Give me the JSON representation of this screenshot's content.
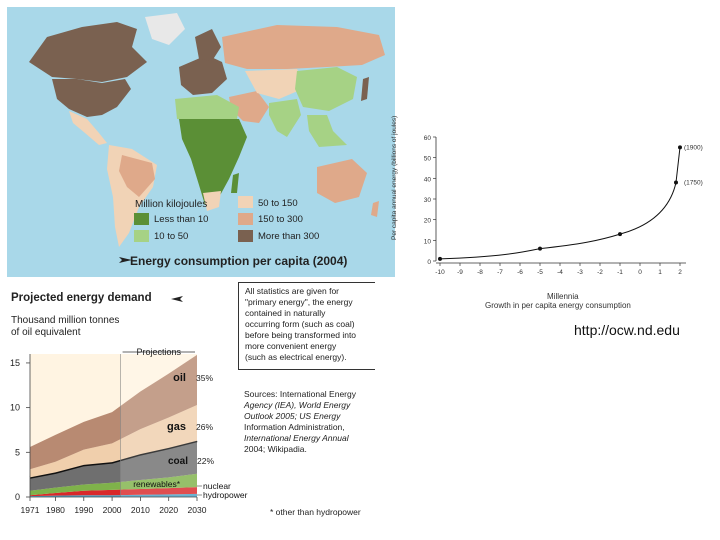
{
  "map": {
    "legend_title": "Million kilojoules",
    "legend_items": [
      {
        "label": "Less than 10",
        "color": "#5b8f36"
      },
      {
        "label": "10 to 50",
        "color": "#a6d285"
      },
      {
        "label": "50 to 150",
        "color": "#f1d3b6"
      },
      {
        "label": "150 to 300",
        "color": "#dfa98a"
      },
      {
        "label": "More than 300",
        "color": "#7a6150"
      }
    ],
    "caption": "Energy consumption per capita (2004)"
  },
  "projected": {
    "title": "Projected energy demand",
    "subtitle_line1": "Thousand million tonnes",
    "subtitle_line2": "of oil equivalent",
    "projections_label": "Projections",
    "note_lines": [
      "All statistics are given for",
      "\"primary energy\", the energy",
      "contained in naturally",
      "occurring form (such as coal)",
      "before being transformed into",
      "more convenient energy",
      "(such as electrical energy)."
    ],
    "sources_lines": [
      "Sources: International Energy",
      "Agency (IEA), World Energy",
      "Outlook 2005; US Energy",
      "Information Administration,",
      "International Energy Annual",
      "2004; Wikipadia."
    ],
    "footnote": "* other than hydropower"
  },
  "chart_data": [
    {
      "type": "area",
      "title": "Projected energy demand",
      "ylabel": "Thousand million tonnes of oil equivalent",
      "x": [
        1971,
        1980,
        1990,
        2000,
        2010,
        2020,
        2030
      ],
      "x_tick_labels": [
        "1971",
        "1980",
        "1990",
        "2000",
        "2010",
        "2020",
        "2030"
      ],
      "y_tick_labels": [
        "0",
        "5",
        "10",
        "15"
      ],
      "ylim": [
        0,
        16
      ],
      "projection_start": 2003,
      "series": [
        {
          "name": "hydropower",
          "values": [
            0.1,
            0.15,
            0.2,
            0.2,
            0.25,
            0.3,
            0.35
          ],
          "color": "#4aa3c9",
          "label": "hydropower"
        },
        {
          "name": "nuclear",
          "values": [
            0.1,
            0.3,
            0.5,
            0.6,
            0.65,
            0.7,
            0.75
          ],
          "color": "#d9282a",
          "label": "nuclear"
        },
        {
          "name": "renewables*",
          "values": [
            0.5,
            0.6,
            0.7,
            0.8,
            1.0,
            1.2,
            1.5
          ],
          "color": "#7fb24a",
          "label": "renewables*"
        },
        {
          "name": "coal",
          "values": [
            1.5,
            1.7,
            2.2,
            2.3,
            2.9,
            3.3,
            3.7
          ],
          "color": "#6f6f6f",
          "label": "coal",
          "share": "22%"
        },
        {
          "name": "gas",
          "values": [
            0.9,
            1.2,
            1.7,
            2.1,
            2.8,
            3.4,
            4.0
          ],
          "color": "#f0cfac",
          "label": "gas",
          "share": "26%"
        },
        {
          "name": "oil",
          "values": [
            2.5,
            3.0,
            3.1,
            3.5,
            4.2,
            4.9,
            5.6
          ],
          "color": "#b88a72",
          "label": "oil",
          "share": "35%"
        }
      ]
    },
    {
      "type": "line",
      "title": "Growth in per capita energy consumption",
      "xlabel": "Millennia",
      "ylabel": "Per capita annual energy (billions of joules)",
      "x": [
        -10,
        -5,
        -1,
        1.8,
        2
      ],
      "y": [
        1,
        6,
        13,
        38,
        55
      ],
      "x_tick_labels": [
        "-10",
        "-9",
        "-8",
        "-7",
        "-6",
        "-5",
        "-4",
        "-3",
        "-2",
        "-1",
        "0",
        "1",
        "2"
      ],
      "y_tick_labels": [
        "0",
        "10",
        "20",
        "30",
        "40",
        "50",
        "60"
      ],
      "xlim": [
        -10,
        2
      ],
      "ylim": [
        0,
        60
      ],
      "annotations": [
        "(1900)",
        "(1750)"
      ]
    }
  ],
  "footer": {
    "url": "http://ocw.nd.edu"
  }
}
